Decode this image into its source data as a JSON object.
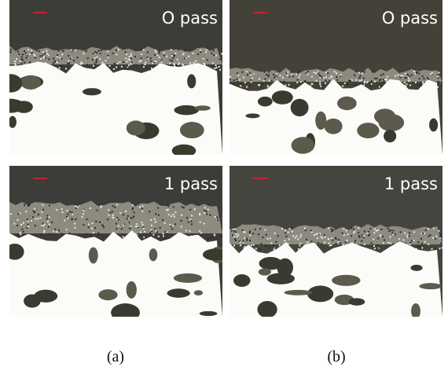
{
  "panels": [
    {
      "label": "O pass"
    },
    {
      "label": "O pass"
    },
    {
      "label": "1 pass"
    },
    {
      "label": "1 pass"
    }
  ],
  "captions": [
    "(a)",
    "(b)"
  ]
}
